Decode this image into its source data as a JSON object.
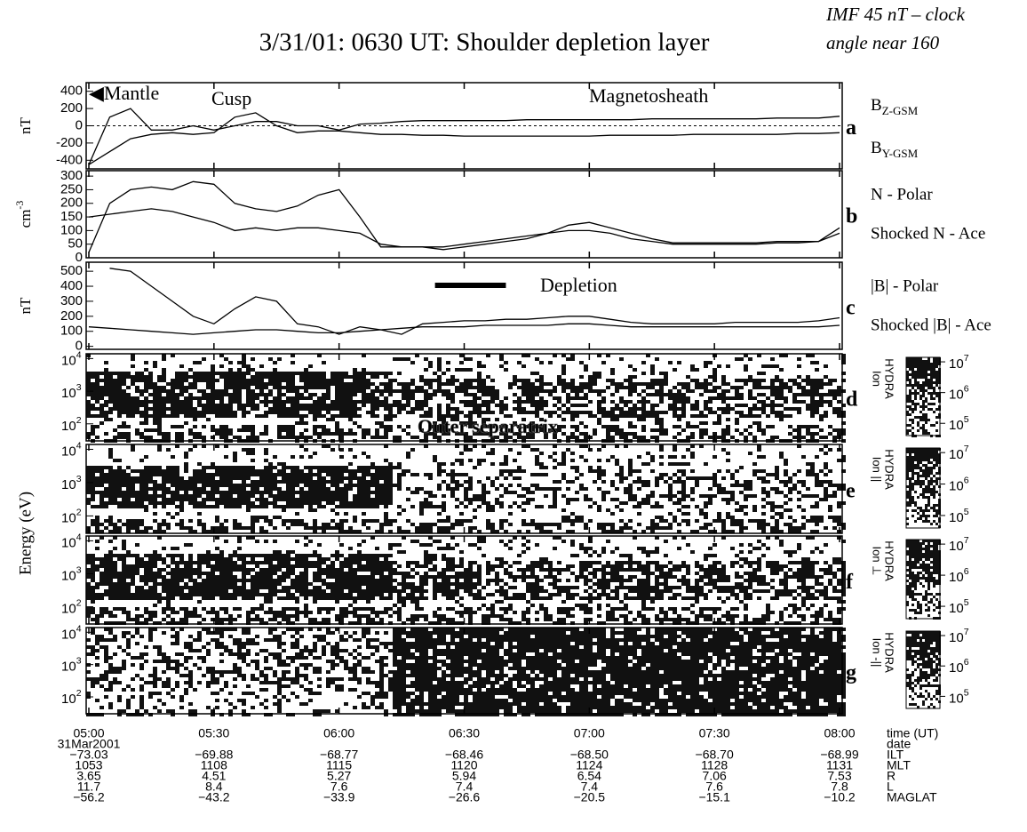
{
  "title": "3/31/01: 0630 UT: Shoulder depletion layer",
  "note": [
    "IMF 45 nT – clock",
    "angle near 160"
  ],
  "time_axis": {
    "xlim": [
      0,
      180
    ],
    "xticks": [
      {
        "value": 0,
        "label": "05:00"
      },
      {
        "value": 30,
        "label": "05:30"
      },
      {
        "value": 60,
        "label": "06:00"
      },
      {
        "value": 90,
        "label": "06:30"
      },
      {
        "value": 120,
        "label": "07:00"
      },
      {
        "value": 150,
        "label": "07:30"
      },
      {
        "value": 180,
        "label": "08:00"
      }
    ]
  },
  "x": [
    0,
    5,
    10,
    15,
    20,
    25,
    30,
    35,
    40,
    45,
    50,
    55,
    60,
    65,
    70,
    75,
    80,
    85,
    90,
    95,
    100,
    105,
    110,
    115,
    120,
    125,
    130,
    135,
    140,
    145,
    150,
    155,
    160,
    165,
    170,
    175,
    180
  ],
  "panels": [
    {
      "letter": "a",
      "unit": "nT",
      "ylim": [
        -500,
        500
      ],
      "yticks": [
        -400,
        -200,
        0,
        200,
        400
      ],
      "zero_line": true,
      "annotations": [
        "◀Mantle",
        "Cusp",
        "Magnetosheath"
      ],
      "series": [
        {
          "name": "B",
          "sub": "Z-GSM",
          "values": [
            -450,
            100,
            200,
            -50,
            -50,
            0,
            -50,
            0,
            50,
            50,
            0,
            0,
            -50,
            20,
            30,
            50,
            60,
            60,
            60,
            60,
            60,
            70,
            70,
            70,
            70,
            70,
            70,
            80,
            80,
            80,
            80,
            80,
            80,
            90,
            90,
            90,
            110
          ]
        },
        {
          "name": "B",
          "sub": "Y-GSM",
          "values": [
            -450,
            -300,
            -150,
            -100,
            -80,
            -100,
            -80,
            100,
            150,
            0,
            -80,
            -60,
            -60,
            -80,
            -100,
            -100,
            -110,
            -110,
            -120,
            -120,
            -120,
            -120,
            -120,
            -120,
            -120,
            -110,
            -110,
            -110,
            -110,
            -100,
            -100,
            -100,
            -100,
            -100,
            -90,
            -90,
            -80
          ]
        }
      ]
    },
    {
      "letter": "b",
      "unit": "cm",
      "unit_exp": "-3",
      "ylim": [
        0,
        320
      ],
      "yticks": [
        0,
        50,
        100,
        150,
        200,
        250,
        300
      ],
      "series": [
        {
          "name": "N - Polar",
          "values": [
            20,
            200,
            250,
            260,
            250,
            280,
            270,
            200,
            180,
            170,
            190,
            230,
            250,
            150,
            40,
            40,
            40,
            30,
            40,
            50,
            60,
            70,
            90,
            120,
            130,
            110,
            90,
            70,
            55,
            55,
            55,
            55,
            55,
            60,
            60,
            60,
            110
          ]
        },
        {
          "name": "Shocked N - Ace",
          "values": [
            150,
            160,
            170,
            180,
            170,
            150,
            130,
            100,
            110,
            100,
            110,
            110,
            100,
            90,
            50,
            40,
            40,
            40,
            50,
            60,
            70,
            80,
            90,
            100,
            100,
            90,
            70,
            60,
            50,
            50,
            50,
            50,
            50,
            55,
            55,
            60,
            90
          ]
        }
      ]
    },
    {
      "letter": "c",
      "unit": "nT",
      "ylim": [
        -20,
        560
      ],
      "yticks": [
        0,
        100,
        200,
        300,
        400,
        500
      ],
      "annotations": [
        "Depletion"
      ],
      "depletion_interval": [
        83,
        100
      ],
      "series": [
        {
          "name": "|B| - Polar",
          "values": [
            null,
            520,
            500,
            400,
            300,
            200,
            150,
            250,
            330,
            300,
            150,
            130,
            80,
            130,
            110,
            80,
            150,
            160,
            170,
            170,
            180,
            180,
            190,
            200,
            200,
            180,
            160,
            150,
            150,
            150,
            150,
            160,
            160,
            160,
            160,
            170,
            190
          ]
        },
        {
          "name": "Shocked |B| - Ace",
          "values": [
            130,
            120,
            110,
            100,
            90,
            80,
            90,
            100,
            110,
            110,
            100,
            90,
            90,
            100,
            110,
            120,
            130,
            130,
            130,
            140,
            140,
            140,
            140,
            150,
            150,
            140,
            130,
            130,
            130,
            130,
            130,
            130,
            130,
            130,
            130,
            130,
            140
          ]
        }
      ]
    }
  ],
  "spectrograms": {
    "label": "Energy (eV)",
    "annotation": "Outer separatrix",
    "ylim": [
      30,
      14000
    ],
    "yticks": [
      {
        "value": 100,
        "label": "10",
        "exp": "2"
      },
      {
        "value": 1000,
        "label": "10",
        "exp": "3"
      },
      {
        "value": 10000,
        "label": "10",
        "exp": "4"
      }
    ],
    "clim": [
      40000,
      14000000
    ],
    "cticks": [
      {
        "value": 100000,
        "label": "10",
        "exp": "5"
      },
      {
        "value": 1000000,
        "label": "10",
        "exp": "6"
      },
      {
        "value": 10000000,
        "label": "10",
        "exp": "7"
      }
    ],
    "panels": [
      {
        "letter": "d",
        "instrument": "HYDRA",
        "species": "Ion"
      },
      {
        "letter": "e",
        "instrument": "HYDRA",
        "species": "Ion ||"
      },
      {
        "letter": "f",
        "instrument": "HYDRA",
        "species": "Ion ⊥"
      },
      {
        "letter": "g",
        "instrument": "HYDRA",
        "species": "Ion -||"
      }
    ]
  },
  "table": {
    "time_label": "time (UT)",
    "rows": [
      {
        "label": "date",
        "cells": [
          "31Mar2001"
        ]
      },
      {
        "label": "ILT",
        "cells": [
          "−73.03",
          "−69.88",
          "−68.77",
          "−68.46",
          "−68.50",
          "−68.70",
          "−68.99"
        ]
      },
      {
        "label": "MLT",
        "cells": [
          "1053",
          "1108",
          "1115",
          "1120",
          "1124",
          "1128",
          "1131"
        ]
      },
      {
        "label": "R",
        "cells": [
          "3.65",
          "4.51",
          "5.27",
          "5.94",
          "6.54",
          "7.06",
          "7.53"
        ]
      },
      {
        "label": "L",
        "cells": [
          "11.7",
          "8.4",
          "7.6",
          "7.4",
          "7.4",
          "7.6",
          "7.8"
        ]
      },
      {
        "label": "MAGLAT",
        "cells": [
          "−56.2",
          "−43.2",
          "−33.9",
          "−26.6",
          "−20.5",
          "−15.1",
          "−10.2"
        ]
      }
    ]
  }
}
